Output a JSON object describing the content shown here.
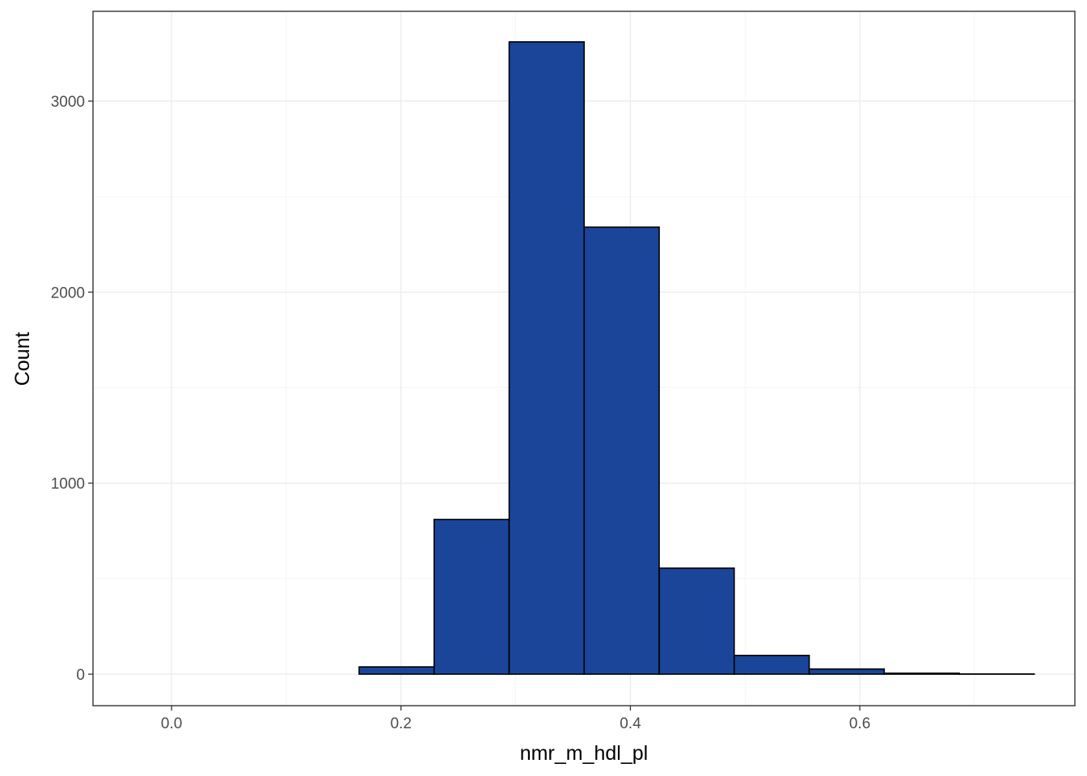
{
  "chart_data": {
    "type": "bar",
    "subtype": "histogram",
    "title": "",
    "xlabel": "nmr_m_hdl_pl",
    "ylabel": "Count",
    "xlim": [
      -0.0685,
      0.7875
    ],
    "ylim": [
      -165,
      3470
    ],
    "x_ticks": [
      0.0,
      0.2,
      0.4,
      0.6
    ],
    "x_tick_labels": [
      "0.0",
      "0.2",
      "0.4",
      "0.6"
    ],
    "y_ticks": [
      0,
      1000,
      2000,
      3000
    ],
    "y_tick_labels": [
      "0",
      "1000",
      "2000",
      "3000"
    ],
    "grid": true,
    "legend": "none",
    "bars": [
      {
        "x_min": -0.0327,
        "x_max": 0.0327,
        "count": 0
      },
      {
        "x_min": 0.0327,
        "x_max": 0.0981,
        "count": 0
      },
      {
        "x_min": 0.0981,
        "x_max": 0.1635,
        "count": 0
      },
      {
        "x_min": 0.1635,
        "x_max": 0.2289,
        "count": 38
      },
      {
        "x_min": 0.2289,
        "x_max": 0.2943,
        "count": 810
      },
      {
        "x_min": 0.2943,
        "x_max": 0.3597,
        "count": 3310
      },
      {
        "x_min": 0.3597,
        "x_max": 0.4251,
        "count": 2340
      },
      {
        "x_min": 0.4251,
        "x_max": 0.4905,
        "count": 555
      },
      {
        "x_min": 0.4905,
        "x_max": 0.5559,
        "count": 98
      },
      {
        "x_min": 0.5559,
        "x_max": 0.6213,
        "count": 27
      },
      {
        "x_min": 0.6213,
        "x_max": 0.6867,
        "count": 5
      },
      {
        "x_min": 0.6867,
        "x_max": 0.7521,
        "count": 1
      }
    ],
    "colors": {
      "bar_fill": "#1A4599",
      "bar_outline": "#000000",
      "panel_border": "#333333",
      "grid": "#EBEBEB"
    }
  }
}
